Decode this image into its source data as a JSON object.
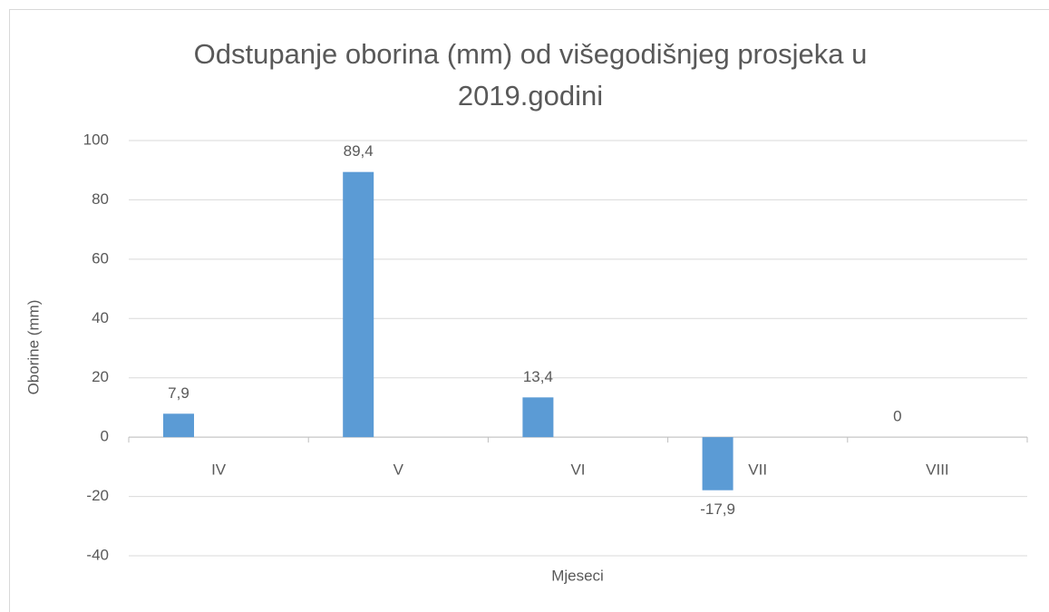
{
  "chart_data": {
    "type": "bar",
    "title": "Odstupanje oborina (mm) od višegodišnjeg prosjeka u 2019.godini",
    "x_label": "Mjeseci",
    "y_label": "Oborine (mm)",
    "categories": [
      "IV",
      "V",
      "VI",
      "VII",
      "VIII"
    ],
    "values": [
      7.9,
      89.4,
      13.4,
      -17.9,
      0
    ],
    "value_labels": [
      "7,9",
      "89,4",
      "13,4",
      "-17,9",
      "0"
    ],
    "color": "#5b9bd5",
    "ylim": [
      -40,
      100
    ],
    "yticks": [
      -40,
      -20,
      0,
      20,
      40,
      60,
      80,
      100
    ],
    "grid": true
  }
}
